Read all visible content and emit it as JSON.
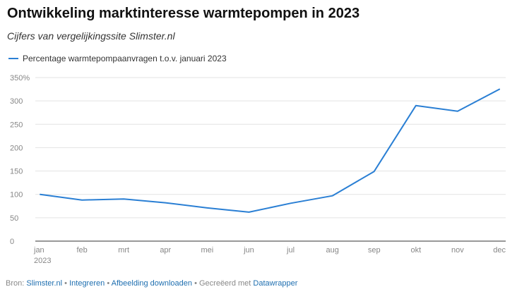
{
  "header": {
    "title": "Ontwikkeling marktinteresse warmtepompen in 2023",
    "subtitle": "Cijfers van vergelijkingssite Slimster.nl"
  },
  "colors": {
    "series": "#2a7fd4",
    "grid": "#e3e3e3",
    "axis": "#333333",
    "tick_text": "#878787"
  },
  "chart_data": {
    "type": "line",
    "x": [
      "jan",
      "feb",
      "mrt",
      "apr",
      "mei",
      "jun",
      "jul",
      "aug",
      "sep",
      "okt",
      "nov",
      "dec"
    ],
    "x_sublabel_first": "2023",
    "series": [
      {
        "name": "Percentage warmtepompaanvragen t.o.v. januari 2023",
        "values": [
          100,
          88,
          90,
          82,
          71,
          62,
          81,
          97,
          149,
          290,
          278,
          325
        ]
      }
    ],
    "y_ticks": [
      "350%",
      "300",
      "250",
      "200",
      "150",
      "100",
      "50",
      "0"
    ],
    "y_tick_values": [
      350,
      300,
      250,
      200,
      150,
      100,
      50,
      0
    ],
    "ylim": [
      0,
      350
    ],
    "grid": true,
    "legend_position": "top-left"
  },
  "footer": {
    "source_label": "Bron:",
    "source_link": "Slimster.nl",
    "sep": "•",
    "embed_link": "Integreren",
    "download_link": "Afbeelding downloaden",
    "created_label": "Gecreëerd met",
    "tool_link": "Datawrapper"
  }
}
